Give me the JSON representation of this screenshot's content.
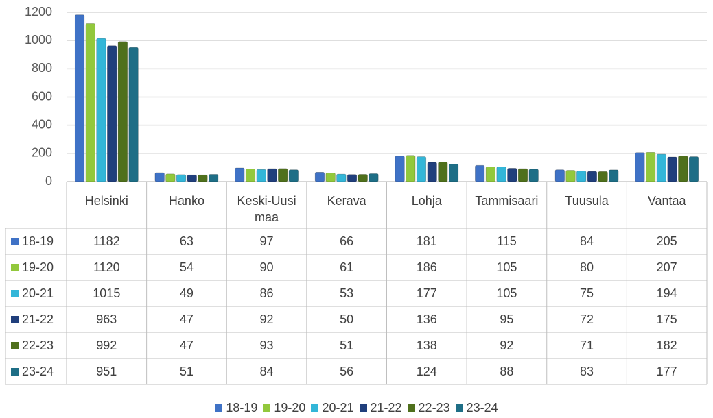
{
  "chart_data": {
    "type": "bar",
    "categories": [
      "Helsinki",
      "Hanko",
      "Keski-Uusimaa",
      "Kerava",
      "Lohja",
      "Tammisaari",
      "Tuusula",
      "Vantaa"
    ],
    "series": [
      {
        "name": "18-19",
        "color": "#3f72c6",
        "values": [
          1182,
          63,
          97,
          66,
          181,
          115,
          84,
          205
        ]
      },
      {
        "name": "19-20",
        "color": "#92c83c",
        "values": [
          1120,
          54,
          90,
          61,
          186,
          105,
          80,
          207
        ]
      },
      {
        "name": "20-21",
        "color": "#33b6d8",
        "values": [
          1015,
          49,
          86,
          53,
          177,
          105,
          75,
          194
        ]
      },
      {
        "name": "21-22",
        "color": "#203f7c",
        "values": [
          963,
          47,
          92,
          50,
          136,
          95,
          72,
          175
        ]
      },
      {
        "name": "22-23",
        "color": "#4f701c",
        "values": [
          992,
          47,
          93,
          51,
          138,
          92,
          71,
          182
        ]
      },
      {
        "name": "23-24",
        "color": "#1e6e86",
        "values": [
          951,
          51,
          84,
          56,
          124,
          88,
          83,
          177
        ]
      }
    ],
    "ylim": [
      0,
      1200
    ],
    "yticks": [
      0,
      200,
      400,
      600,
      800,
      1000,
      1200
    ],
    "grid": true,
    "legend": "bottom"
  }
}
